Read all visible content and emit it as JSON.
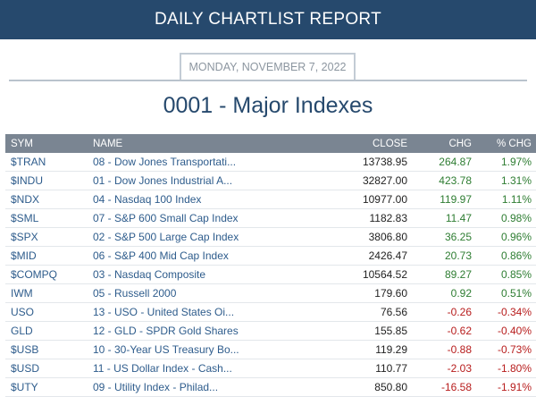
{
  "header": {
    "title": "DAILY CHARTLIST REPORT"
  },
  "date": "MONDAY, NOVEMBER 7, 2022",
  "page_title": "0001 - Major Indexes",
  "colors": {
    "header_bg": "#26496d",
    "table_header_bg": "#7a8592",
    "positive": "#2e7d32",
    "negative": "#b71c1c",
    "link": "#2e5c8c"
  },
  "table": {
    "columns": {
      "sym": "SYM",
      "name": "NAME",
      "close": "CLOSE",
      "chg": "CHG",
      "pct": "% CHG"
    },
    "rows": [
      {
        "sym": "$TRAN",
        "name": "08 - Dow Jones Transportati...",
        "close": "13738.95",
        "chg": "264.87",
        "pct": "1.97%",
        "dir": "pos"
      },
      {
        "sym": "$INDU",
        "name": "01 - Dow Jones Industrial A...",
        "close": "32827.00",
        "chg": "423.78",
        "pct": "1.31%",
        "dir": "pos"
      },
      {
        "sym": "$NDX",
        "name": "04 - Nasdaq 100 Index",
        "close": "10977.00",
        "chg": "119.97",
        "pct": "1.11%",
        "dir": "pos"
      },
      {
        "sym": "$SML",
        "name": "07 - S&P 600 Small Cap Index",
        "close": "1182.83",
        "chg": "11.47",
        "pct": "0.98%",
        "dir": "pos"
      },
      {
        "sym": "$SPX",
        "name": "02 - S&P 500 Large Cap Index",
        "close": "3806.80",
        "chg": "36.25",
        "pct": "0.96%",
        "dir": "pos"
      },
      {
        "sym": "$MID",
        "name": "06 - S&P 400 Mid Cap Index",
        "close": "2426.47",
        "chg": "20.73",
        "pct": "0.86%",
        "dir": "pos"
      },
      {
        "sym": "$COMPQ",
        "name": "03 - Nasdaq Composite",
        "close": "10564.52",
        "chg": "89.27",
        "pct": "0.85%",
        "dir": "pos"
      },
      {
        "sym": "IWM",
        "name": "05 - Russell 2000",
        "close": "179.60",
        "chg": "0.92",
        "pct": "0.51%",
        "dir": "pos"
      },
      {
        "sym": "USO",
        "name": "13 - USO - United States Oi...",
        "close": "76.56",
        "chg": "-0.26",
        "pct": "-0.34%",
        "dir": "neg"
      },
      {
        "sym": "GLD",
        "name": "12 - GLD - SPDR Gold Shares",
        "close": "155.85",
        "chg": "-0.62",
        "pct": "-0.40%",
        "dir": "neg"
      },
      {
        "sym": "$USB",
        "name": "10 - 30-Year US Treasury Bo...",
        "close": "119.29",
        "chg": "-0.88",
        "pct": "-0.73%",
        "dir": "neg"
      },
      {
        "sym": "$USD",
        "name": "11 - US Dollar Index - Cash...",
        "close": "110.77",
        "chg": "-2.03",
        "pct": "-1.80%",
        "dir": "neg"
      },
      {
        "sym": "$UTY",
        "name": "09 - Utility Index - Philad...",
        "close": "850.80",
        "chg": "-16.58",
        "pct": "-1.91%",
        "dir": "neg"
      }
    ]
  }
}
